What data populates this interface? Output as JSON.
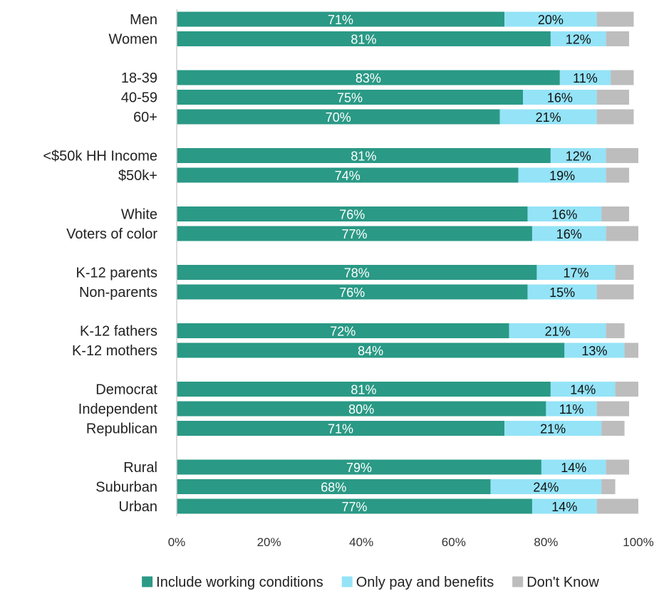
{
  "chart_data": {
    "type": "bar",
    "orientation": "horizontal",
    "stacked": true,
    "percent_axis": true,
    "xlim": [
      0,
      100
    ],
    "xticks": [
      "0%",
      "20%",
      "40%",
      "60%",
      "80%",
      "100%"
    ],
    "grid": false,
    "legend_position": "bottom",
    "groups": [
      [
        "Men",
        "Women"
      ],
      [
        "18-39",
        "40-59",
        "60+"
      ],
      [
        "<$50k HH Income",
        "$50k+"
      ],
      [
        "White",
        "Voters of color"
      ],
      [
        "K-12 parents",
        "Non-parents"
      ],
      [
        "K-12 fathers",
        "K-12 mothers"
      ],
      [
        "Democrat",
        "Independent",
        "Republican"
      ],
      [
        "Rural",
        "Suburban",
        "Urban"
      ]
    ],
    "categories": [
      "Men",
      "Women",
      "18-39",
      "40-59",
      "60+",
      "<$50k HH Income",
      "$50k+",
      "White",
      "Voters of color",
      "K-12 parents",
      "Non-parents",
      "K-12 fathers",
      "K-12 mothers",
      "Democrat",
      "Independent",
      "Republican",
      "Rural",
      "Suburban",
      "Urban"
    ],
    "series": [
      {
        "name": "Include working conditions",
        "color": "#2a9985",
        "label_color": "#ffffff",
        "values": [
          71,
          81,
          83,
          75,
          70,
          81,
          74,
          76,
          77,
          78,
          76,
          72,
          84,
          81,
          80,
          71,
          79,
          68,
          77
        ],
        "labels": [
          "71%",
          "81%",
          "83%",
          "75%",
          "70%",
          "81%",
          "74%",
          "76%",
          "77%",
          "78%",
          "76%",
          "72%",
          "84%",
          "81%",
          "80%",
          "71%",
          "79%",
          "68%",
          "77%"
        ]
      },
      {
        "name": "Only pay and benefits",
        "color": "#94e3f7",
        "label_color": "#111111",
        "values": [
          20,
          12,
          11,
          16,
          21,
          12,
          19,
          16,
          16,
          17,
          15,
          21,
          13,
          14,
          11,
          21,
          14,
          24,
          14
        ],
        "labels": [
          "20%",
          "12%",
          "11%",
          "16%",
          "21%",
          "12%",
          "19%",
          "16%",
          "16%",
          "17%",
          "15%",
          "21%",
          "13%",
          "14%",
          "11%",
          "21%",
          "14%",
          "24%",
          "14%"
        ]
      },
      {
        "name": "Don't Know",
        "color": "#bdbdbd",
        "label_color": "#111111",
        "values": [
          8,
          5,
          5,
          7,
          8,
          7,
          5,
          6,
          7,
          4,
          8,
          4,
          3,
          5,
          7,
          5,
          5,
          3,
          9
        ],
        "labels": []
      }
    ]
  }
}
